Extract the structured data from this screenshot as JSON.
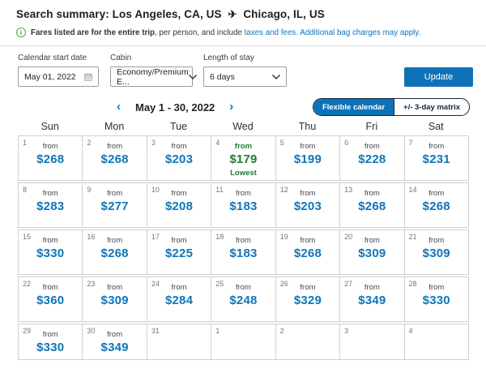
{
  "header": {
    "title_prefix": "Search summary:",
    "origin": "Los Angeles, CA, US",
    "destination": "Chicago, IL, US",
    "plane_icon": "✈"
  },
  "notice": {
    "info_icon": "i",
    "bold_text": "Fares listed are for the entire trip",
    "regular_text": ", per person, and include ",
    "link_taxes": "taxes and fees.",
    "link_bags": "Additional bag charges may apply."
  },
  "form": {
    "start_date": {
      "label": "Calendar start date",
      "value": "May 01, 2022"
    },
    "cabin": {
      "label": "Cabin",
      "value": "Economy/Premium E..."
    },
    "stay": {
      "label": "Length of stay",
      "value": "6 days"
    },
    "update_label": "Update"
  },
  "calendar": {
    "prev_arrow": "‹",
    "next_arrow": "›",
    "range_label": "May 1 - 30, 2022",
    "toggle": {
      "flexible": "Flexible calendar",
      "matrix": "+/- 3-day matrix"
    },
    "day_headers": [
      "Sun",
      "Mon",
      "Tue",
      "Wed",
      "Thu",
      "Fri",
      "Sat"
    ],
    "from_label": "from",
    "lowest_label": "Lowest",
    "weeks": [
      [
        {
          "day": 1,
          "price": "$268"
        },
        {
          "day": 2,
          "price": "$268"
        },
        {
          "day": 3,
          "price": "$203"
        },
        {
          "day": 4,
          "price": "$179",
          "lowest": true
        },
        {
          "day": 5,
          "price": "$199"
        },
        {
          "day": 6,
          "price": "$228"
        },
        {
          "day": 7,
          "price": "$231"
        }
      ],
      [
        {
          "day": 8,
          "price": "$283"
        },
        {
          "day": 9,
          "price": "$277"
        },
        {
          "day": 10,
          "price": "$208"
        },
        {
          "day": 11,
          "price": "$183"
        },
        {
          "day": 12,
          "price": "$203"
        },
        {
          "day": 13,
          "price": "$268"
        },
        {
          "day": 14,
          "price": "$268"
        }
      ],
      [
        {
          "day": 15,
          "price": "$330"
        },
        {
          "day": 16,
          "price": "$268"
        },
        {
          "day": 17,
          "price": "$225"
        },
        {
          "day": 18,
          "price": "$183"
        },
        {
          "day": 19,
          "price": "$268"
        },
        {
          "day": 20,
          "price": "$309"
        },
        {
          "day": 21,
          "price": "$309"
        }
      ],
      [
        {
          "day": 22,
          "price": "$360"
        },
        {
          "day": 23,
          "price": "$309"
        },
        {
          "day": 24,
          "price": "$284"
        },
        {
          "day": 25,
          "price": "$248"
        },
        {
          "day": 26,
          "price": "$329"
        },
        {
          "day": 27,
          "price": "$349"
        },
        {
          "day": 28,
          "price": "$330"
        }
      ],
      [
        {
          "day": 29,
          "price": "$330"
        },
        {
          "day": 30,
          "price": "$349"
        },
        {
          "day": 31,
          "price": null
        },
        {
          "day": 1,
          "price": null
        },
        {
          "day": 2,
          "price": null
        },
        {
          "day": 3,
          "price": null
        },
        {
          "day": 4,
          "price": null
        }
      ]
    ]
  },
  "colors": {
    "link_blue": "#0c74bb",
    "price_blue": "#0f76ba",
    "button_blue": "#0f72b6",
    "toggle_active_blue": "#0c72b8",
    "lowest_green": "#1e7b34",
    "info_green": "#46a24a",
    "grid_border": "#cfcfcf"
  }
}
